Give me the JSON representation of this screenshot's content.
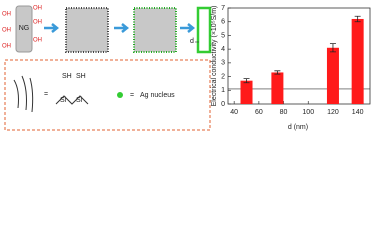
{
  "diagram": {
    "ng_label": "NG",
    "hydroxyl": "OH",
    "thickness_label": "d",
    "equals": "=",
    "thiol": "SH",
    "silicon": "Si",
    "ag_label": "Ag nucleus"
  },
  "chart_data": {
    "type": "bar",
    "xlabel": "d (nm)",
    "ylabel": "Electrical conductivity (×10⁵S/m)",
    "x": [
      50,
      75,
      120,
      140
    ],
    "values": [
      1.7,
      2.3,
      4.1,
      6.2
    ],
    "errors": [
      0.15,
      0.12,
      0.3,
      0.2
    ],
    "color": "#ff1a1a",
    "reference_line": 1.1,
    "xlim": [
      35,
      150
    ],
    "xticks": [
      40,
      60,
      80,
      100,
      120,
      140
    ],
    "ylim": [
      0,
      7
    ],
    "yticks": [
      0,
      1,
      2,
      3,
      4,
      5,
      6,
      7
    ]
  }
}
